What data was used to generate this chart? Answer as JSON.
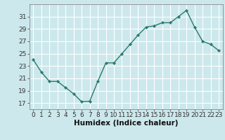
{
  "x": [
    0,
    1,
    2,
    3,
    4,
    5,
    6,
    7,
    8,
    9,
    10,
    11,
    12,
    13,
    14,
    15,
    16,
    17,
    18,
    19,
    20,
    21,
    22,
    23
  ],
  "y": [
    24.0,
    22.0,
    20.5,
    20.5,
    19.5,
    18.5,
    17.2,
    17.3,
    20.5,
    23.5,
    23.5,
    25.0,
    26.5,
    28.0,
    29.3,
    29.5,
    30.0,
    30.0,
    31.0,
    32.0,
    29.3,
    27.0,
    26.5,
    25.5
  ],
  "xlabel": "Humidex (Indice chaleur)",
  "ylim": [
    16,
    33
  ],
  "xlim": [
    -0.5,
    23.5
  ],
  "yticks": [
    17,
    19,
    21,
    23,
    25,
    27,
    29,
    31
  ],
  "xticks": [
    0,
    1,
    2,
    3,
    4,
    5,
    6,
    7,
    8,
    9,
    10,
    11,
    12,
    13,
    14,
    15,
    16,
    17,
    18,
    19,
    20,
    21,
    22,
    23
  ],
  "line_color": "#2a7a6a",
  "marker_color": "#2a7a6a",
  "bg_color": "#cce8ec",
  "grid_color": "#ffffff",
  "tick_fontsize": 6.5,
  "xlabel_fontsize": 7.5
}
